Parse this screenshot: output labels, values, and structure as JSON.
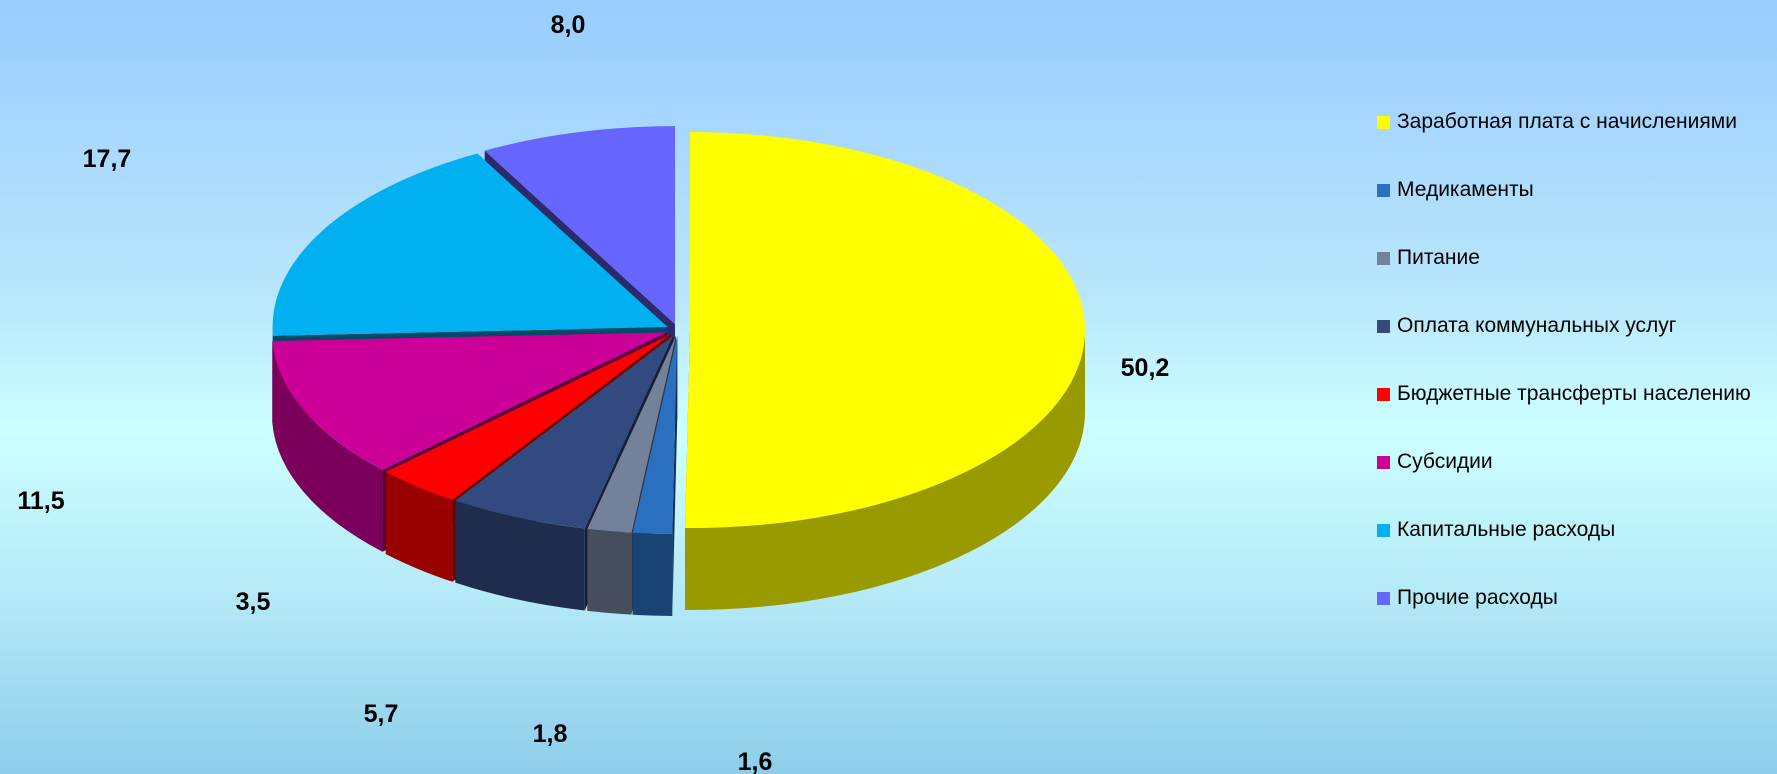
{
  "chart_data": {
    "type": "pie",
    "style": "3d-exploded",
    "legend_position": "right",
    "slices": [
      {
        "name": "Заработная плата с начислениями",
        "value": 50.2,
        "label": "50,2",
        "color": "#ffff00"
      },
      {
        "name": "Медикаменты",
        "value": 1.6,
        "label": "1,6",
        "color": "#2a6fc0"
      },
      {
        "name": "Питание",
        "value": 1.8,
        "label": "1,8",
        "color": "#74819a"
      },
      {
        "name": "Оплата коммунальных услуг",
        "value": 5.7,
        "label": "5,7",
        "color": "#334a80"
      },
      {
        "name": "Бюджетные трансферты населению",
        "value": 3.5,
        "label": "3,5",
        "color": "#ff0000"
      },
      {
        "name": "Субсидии",
        "value": 11.5,
        "label": "11,5",
        "color": "#cc0099"
      },
      {
        "name": "Капитальные расходы",
        "value": 17.7,
        "label": "17,7",
        "color": "#00b0f0"
      },
      {
        "name": "Прочие расходы",
        "value": 8.0,
        "label": "8,0",
        "color": "#6666ff"
      }
    ]
  }
}
